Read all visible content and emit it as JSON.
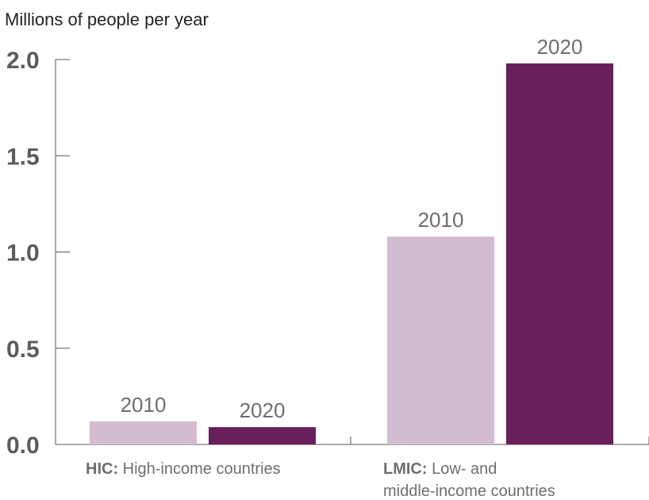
{
  "chart_data": {
    "type": "bar",
    "title": "",
    "ylabel": "Millions of people per year",
    "ylim": [
      0,
      2.0
    ],
    "yticks": [
      "0.0",
      "0.5",
      "1.0",
      "1.5",
      "2.0"
    ],
    "grid": false,
    "categories": [
      {
        "bold": "HIC:",
        "rest": "High-income countries",
        "line2": ""
      },
      {
        "bold": "LMIC:",
        "rest": "Low- and",
        "line2": "middle-income countries"
      }
    ],
    "series": [
      {
        "label": "2010",
        "color": "#d3bcd1",
        "values": [
          0.12,
          1.08
        ]
      },
      {
        "label": "2020",
        "color": "#68205d",
        "values": [
          0.09,
          1.98
        ]
      }
    ]
  }
}
